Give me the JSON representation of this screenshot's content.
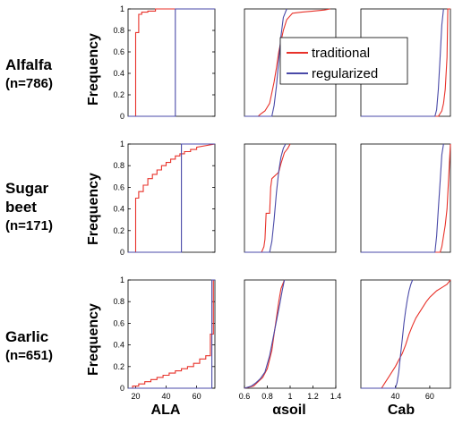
{
  "figure": {
    "rows": [
      {
        "name": "Alfalfa",
        "n": "(n=786)"
      },
      {
        "name": "Sugar",
        "name2": "beet",
        "n": "(n=171)"
      },
      {
        "name": "Garlic",
        "n": "(n=651)"
      }
    ],
    "ylabel": "Frequency",
    "columns": [
      "ALA",
      "αsoil",
      "Cab"
    ]
  },
  "legend": {
    "entries": [
      "traditional",
      "regularized"
    ]
  },
  "colors": {
    "traditional": "#e8322a",
    "regularized": "#4a4aa8"
  },
  "chart_data": [
    {
      "type": "line",
      "id": "r0c0",
      "xlim": [
        15,
        72
      ],
      "ylim": [
        0,
        1
      ],
      "xticks": [],
      "yticks": [
        0,
        0.2,
        0.4,
        0.6,
        0.8,
        1
      ],
      "series": [
        {
          "name": "traditional",
          "x": [
            15,
            20,
            20,
            22,
            22,
            24,
            24,
            28,
            28,
            33,
            33,
            50,
            72
          ],
          "y": [
            0,
            0,
            0.78,
            0.78,
            0.95,
            0.95,
            0.97,
            0.97,
            0.98,
            0.98,
            1,
            1,
            1
          ]
        },
        {
          "name": "regularized",
          "x": [
            15,
            46,
            46,
            72
          ],
          "y": [
            0,
            0,
            1,
            1
          ]
        }
      ]
    },
    {
      "type": "line",
      "id": "r0c1",
      "xlim": [
        0.6,
        1.4
      ],
      "ylim": [
        0,
        1
      ],
      "xticks": [],
      "yticks": [],
      "series": [
        {
          "name": "traditional",
          "x": [
            0.6,
            0.72,
            0.74,
            0.78,
            0.82,
            0.84,
            0.86,
            0.88,
            0.9,
            0.94,
            0.97,
            1.02,
            1.1,
            1.2,
            1.3,
            1.35
          ],
          "y": [
            0,
            0,
            0.02,
            0.05,
            0.12,
            0.22,
            0.32,
            0.45,
            0.6,
            0.8,
            0.9,
            0.96,
            0.97,
            0.98,
            0.99,
            1
          ]
        },
        {
          "name": "regularized",
          "x": [
            0.6,
            0.84,
            0.86,
            0.88,
            0.9,
            0.92,
            0.94,
            0.97
          ],
          "y": [
            0,
            0,
            0.1,
            0.28,
            0.52,
            0.75,
            0.92,
            1
          ]
        }
      ]
    },
    {
      "type": "line",
      "id": "r0c2",
      "xlim": [
        20,
        72
      ],
      "ylim": [
        0,
        1
      ],
      "xticks": [],
      "yticks": [],
      "series": [
        {
          "name": "traditional",
          "x": [
            20,
            65,
            67,
            68,
            69,
            70,
            70.5,
            72
          ],
          "y": [
            0,
            0,
            0.05,
            0.12,
            0.25,
            0.55,
            1,
            1
          ]
        },
        {
          "name": "regularized",
          "x": [
            20,
            63,
            64,
            65,
            66,
            67,
            68
          ],
          "y": [
            0,
            0,
            0.06,
            0.25,
            0.55,
            0.85,
            1
          ]
        }
      ]
    },
    {
      "type": "line",
      "id": "r1c0",
      "xlim": [
        15,
        72
      ],
      "ylim": [
        0,
        1
      ],
      "xticks": [],
      "yticks": [
        0,
        0.2,
        0.4,
        0.6,
        0.8,
        1
      ],
      "series": [
        {
          "name": "traditional",
          "x": [
            15,
            20,
            20,
            22,
            22,
            25,
            25,
            28,
            28,
            31,
            31,
            34,
            34,
            37,
            37,
            40,
            40,
            43,
            43,
            46,
            46,
            49,
            49,
            52,
            52,
            56,
            56,
            60,
            60,
            72
          ],
          "y": [
            0,
            0,
            0.5,
            0.5,
            0.56,
            0.56,
            0.62,
            0.62,
            0.68,
            0.68,
            0.72,
            0.72,
            0.76,
            0.76,
            0.8,
            0.8,
            0.83,
            0.83,
            0.86,
            0.86,
            0.89,
            0.89,
            0.91,
            0.91,
            0.93,
            0.93,
            0.95,
            0.95,
            0.97,
            1
          ]
        },
        {
          "name": "regularized",
          "x": [
            15,
            50,
            50,
            72
          ],
          "y": [
            0,
            0,
            1,
            1
          ]
        }
      ]
    },
    {
      "type": "line",
      "id": "r1c1",
      "xlim": [
        0.6,
        1.4
      ],
      "ylim": [
        0,
        1
      ],
      "xticks": [],
      "yticks": [],
      "series": [
        {
          "name": "traditional",
          "x": [
            0.6,
            0.75,
            0.77,
            0.78,
            0.79,
            0.82,
            0.83,
            0.84,
            0.86,
            0.88,
            0.9,
            0.92,
            0.95,
            0.98,
            1.0
          ],
          "y": [
            0,
            0,
            0.05,
            0.12,
            0.36,
            0.36,
            0.6,
            0.68,
            0.7,
            0.72,
            0.74,
            0.82,
            0.92,
            0.96,
            1
          ]
        },
        {
          "name": "regularized",
          "x": [
            0.6,
            0.82,
            0.84,
            0.86,
            0.88,
            0.9,
            0.92,
            0.94,
            0.96
          ],
          "y": [
            0,
            0,
            0.1,
            0.3,
            0.55,
            0.75,
            0.88,
            0.96,
            1
          ]
        }
      ]
    },
    {
      "type": "line",
      "id": "r1c2",
      "xlim": [
        20,
        72
      ],
      "ylim": [
        0,
        1
      ],
      "xticks": [],
      "yticks": [],
      "series": [
        {
          "name": "traditional",
          "x": [
            20,
            66,
            67,
            68,
            69,
            70,
            71,
            72
          ],
          "y": [
            0,
            0,
            0.05,
            0.15,
            0.25,
            0.4,
            0.7,
            1
          ]
        },
        {
          "name": "regularized",
          "x": [
            20,
            63,
            64,
            65,
            66,
            67,
            68
          ],
          "y": [
            0,
            0,
            0.15,
            0.4,
            0.65,
            0.9,
            1
          ]
        }
      ]
    },
    {
      "type": "line",
      "id": "r2c0",
      "xlim": [
        15,
        72
      ],
      "ylim": [
        0,
        1
      ],
      "xticks": [
        20,
        40,
        60
      ],
      "yticks": [
        0,
        0.2,
        0.4,
        0.6,
        0.8,
        1
      ],
      "series": [
        {
          "name": "traditional",
          "x": [
            15,
            18,
            18,
            22,
            22,
            26,
            26,
            30,
            30,
            34,
            34,
            38,
            38,
            42,
            42,
            46,
            46,
            50,
            50,
            54,
            54,
            58,
            58,
            62,
            62,
            66,
            66,
            69,
            69,
            71,
            71,
            72
          ],
          "y": [
            0,
            0,
            0.02,
            0.02,
            0.04,
            0.04,
            0.06,
            0.06,
            0.08,
            0.08,
            0.1,
            0.1,
            0.12,
            0.12,
            0.14,
            0.14,
            0.16,
            0.16,
            0.18,
            0.18,
            0.2,
            0.2,
            0.23,
            0.23,
            0.27,
            0.27,
            0.3,
            0.3,
            0.5,
            0.5,
            1,
            1
          ]
        },
        {
          "name": "regularized",
          "x": [
            15,
            70,
            70,
            72
          ],
          "y": [
            0,
            0,
            1,
            1
          ]
        }
      ]
    },
    {
      "type": "line",
      "id": "r2c1",
      "xlim": [
        0.6,
        1.4
      ],
      "ylim": [
        0,
        1
      ],
      "xticks": [
        0.6,
        0.8,
        1,
        1.2,
        1.4
      ],
      "yticks": [],
      "series": [
        {
          "name": "traditional",
          "x": [
            0.6,
            0.68,
            0.72,
            0.76,
            0.8,
            0.84,
            0.86,
            0.88,
            0.9,
            0.92,
            0.95
          ],
          "y": [
            0,
            0.02,
            0.06,
            0.1,
            0.18,
            0.35,
            0.5,
            0.65,
            0.8,
            0.92,
            1
          ]
        },
        {
          "name": "regularized",
          "x": [
            0.6,
            0.66,
            0.7,
            0.74,
            0.78,
            0.82,
            0.85,
            0.88,
            0.91,
            0.93,
            0.95
          ],
          "y": [
            0,
            0.02,
            0.05,
            0.09,
            0.15,
            0.3,
            0.46,
            0.62,
            0.78,
            0.9,
            1
          ]
        }
      ]
    },
    {
      "type": "line",
      "id": "r2c2",
      "xlim": [
        20,
        72
      ],
      "ylim": [
        0,
        1
      ],
      "xticks": [
        40,
        60
      ],
      "yticks": [],
      "series": [
        {
          "name": "traditional",
          "x": [
            20,
            32,
            34,
            36,
            38,
            40,
            42,
            44,
            46,
            48,
            50,
            52,
            54,
            56,
            58,
            60,
            62,
            64,
            66,
            68,
            70,
            72
          ],
          "y": [
            0,
            0,
            0.05,
            0.1,
            0.15,
            0.2,
            0.26,
            0.32,
            0.4,
            0.5,
            0.58,
            0.65,
            0.7,
            0.75,
            0.8,
            0.84,
            0.87,
            0.9,
            0.92,
            0.94,
            0.96,
            1
          ]
        },
        {
          "name": "regularized",
          "x": [
            20,
            40,
            41,
            42,
            43,
            44,
            45,
            46,
            47,
            48,
            49,
            50
          ],
          "y": [
            0,
            0,
            0.05,
            0.15,
            0.3,
            0.45,
            0.6,
            0.72,
            0.82,
            0.9,
            0.96,
            1
          ]
        }
      ]
    }
  ]
}
